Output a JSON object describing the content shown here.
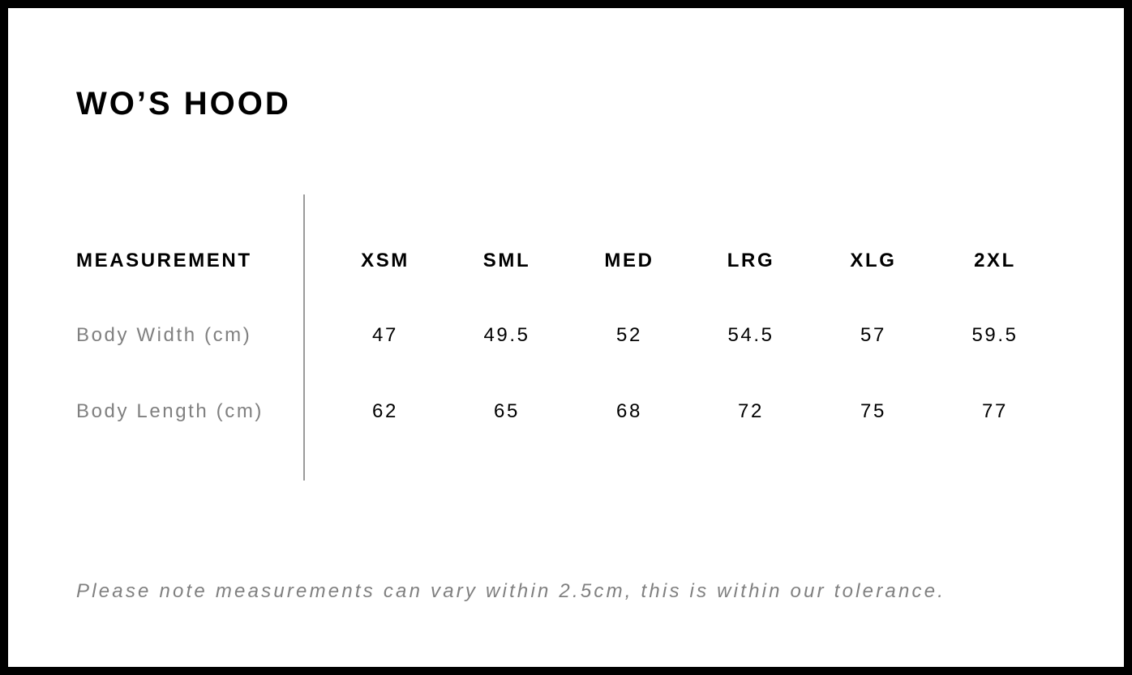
{
  "title": "WO’S HOOD",
  "table": {
    "header_label": "MEASUREMENT",
    "sizes": [
      "XSM",
      "SML",
      "MED",
      "LRG",
      "XLG",
      "2XL"
    ],
    "rows": [
      {
        "label": "Body Width (cm)",
        "values": [
          "47",
          "49.5",
          "52",
          "54.5",
          "57",
          "59.5"
        ]
      },
      {
        "label": "Body Length (cm)",
        "values": [
          "62",
          "65",
          "68",
          "72",
          "75",
          "77"
        ]
      }
    ]
  },
  "note": "Please note measurements can vary within 2.5cm, this is within our tolerance."
}
